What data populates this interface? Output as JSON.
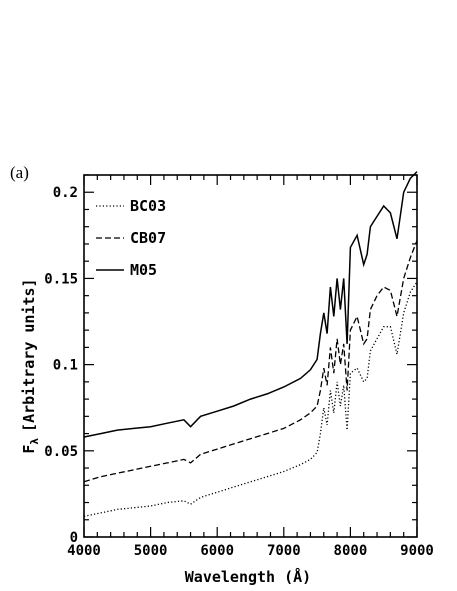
{
  "chart_data": {
    "type": "line",
    "panel_label": "(a)",
    "xlabel": "Wavelength (Å)",
    "ylabel": "F",
    "ylabel_subscript": "λ",
    "ylabel_units": "[Arbitrary units]",
    "xlim": [
      4000,
      9000
    ],
    "ylim": [
      0,
      0.21
    ],
    "x_ticks": [
      4000,
      5000,
      6000,
      7000,
      8000,
      9000
    ],
    "x_tick_labels": [
      "4000",
      "5000",
      "6000",
      "7000",
      "8000",
      "9000"
    ],
    "y_ticks": [
      0,
      0.05,
      0.1,
      0.15,
      0.2
    ],
    "y_tick_labels": [
      "0",
      "0.05",
      "0.1",
      "0.15",
      "0.2"
    ],
    "legend_position": "top-left",
    "grid": false,
    "series": [
      {
        "name": "BC03",
        "style": "dotted",
        "color": "#000000",
        "points": [
          [
            4000,
            0.012
          ],
          [
            4250,
            0.014
          ],
          [
            4500,
            0.016
          ],
          [
            4750,
            0.017
          ],
          [
            5000,
            0.018
          ],
          [
            5250,
            0.02
          ],
          [
            5500,
            0.021
          ],
          [
            5600,
            0.019
          ],
          [
            5750,
            0.023
          ],
          [
            6000,
            0.026
          ],
          [
            6250,
            0.029
          ],
          [
            6500,
            0.032
          ],
          [
            6750,
            0.035
          ],
          [
            7000,
            0.038
          ],
          [
            7250,
            0.042
          ],
          [
            7400,
            0.045
          ],
          [
            7500,
            0.049
          ],
          [
            7550,
            0.06
          ],
          [
            7600,
            0.075
          ],
          [
            7650,
            0.065
          ],
          [
            7700,
            0.085
          ],
          [
            7750,
            0.072
          ],
          [
            7800,
            0.09
          ],
          [
            7850,
            0.076
          ],
          [
            7900,
            0.088
          ],
          [
            7950,
            0.062
          ],
          [
            8000,
            0.095
          ],
          [
            8100,
            0.098
          ],
          [
            8200,
            0.09
          ],
          [
            8250,
            0.092
          ],
          [
            8300,
            0.108
          ],
          [
            8400,
            0.115
          ],
          [
            8500,
            0.122
          ],
          [
            8600,
            0.122
          ],
          [
            8700,
            0.106
          ],
          [
            8800,
            0.13
          ],
          [
            8900,
            0.142
          ],
          [
            9000,
            0.148
          ]
        ]
      },
      {
        "name": "CB07",
        "style": "dashed",
        "color": "#000000",
        "points": [
          [
            4000,
            0.032
          ],
          [
            4250,
            0.035
          ],
          [
            4500,
            0.037
          ],
          [
            4750,
            0.039
          ],
          [
            5000,
            0.041
          ],
          [
            5250,
            0.043
          ],
          [
            5500,
            0.045
          ],
          [
            5600,
            0.043
          ],
          [
            5750,
            0.048
          ],
          [
            6000,
            0.051
          ],
          [
            6250,
            0.054
          ],
          [
            6500,
            0.057
          ],
          [
            6750,
            0.06
          ],
          [
            7000,
            0.063
          ],
          [
            7250,
            0.068
          ],
          [
            7400,
            0.072
          ],
          [
            7500,
            0.076
          ],
          [
            7550,
            0.085
          ],
          [
            7600,
            0.098
          ],
          [
            7650,
            0.088
          ],
          [
            7700,
            0.11
          ],
          [
            7750,
            0.095
          ],
          [
            7800,
            0.115
          ],
          [
            7850,
            0.1
          ],
          [
            7900,
            0.112
          ],
          [
            7950,
            0.085
          ],
          [
            8000,
            0.12
          ],
          [
            8100,
            0.128
          ],
          [
            8200,
            0.112
          ],
          [
            8250,
            0.115
          ],
          [
            8300,
            0.132
          ],
          [
            8400,
            0.14
          ],
          [
            8500,
            0.145
          ],
          [
            8600,
            0.143
          ],
          [
            8700,
            0.128
          ],
          [
            8800,
            0.15
          ],
          [
            8900,
            0.162
          ],
          [
            9000,
            0.172
          ]
        ]
      },
      {
        "name": "M05",
        "style": "solid",
        "color": "#000000",
        "points": [
          [
            4000,
            0.058
          ],
          [
            4250,
            0.06
          ],
          [
            4500,
            0.062
          ],
          [
            4750,
            0.063
          ],
          [
            5000,
            0.064
          ],
          [
            5250,
            0.066
          ],
          [
            5500,
            0.068
          ],
          [
            5600,
            0.064
          ],
          [
            5750,
            0.07
          ],
          [
            6000,
            0.073
          ],
          [
            6250,
            0.076
          ],
          [
            6500,
            0.08
          ],
          [
            6750,
            0.083
          ],
          [
            7000,
            0.087
          ],
          [
            7250,
            0.092
          ],
          [
            7400,
            0.097
          ],
          [
            7500,
            0.103
          ],
          [
            7550,
            0.118
          ],
          [
            7600,
            0.13
          ],
          [
            7650,
            0.118
          ],
          [
            7700,
            0.145
          ],
          [
            7750,
            0.128
          ],
          [
            7800,
            0.15
          ],
          [
            7850,
            0.132
          ],
          [
            7900,
            0.15
          ],
          [
            7950,
            0.112
          ],
          [
            8000,
            0.168
          ],
          [
            8100,
            0.175
          ],
          [
            8200,
            0.158
          ],
          [
            8250,
            0.164
          ],
          [
            8300,
            0.18
          ],
          [
            8400,
            0.186
          ],
          [
            8500,
            0.192
          ],
          [
            8600,
            0.188
          ],
          [
            8700,
            0.173
          ],
          [
            8800,
            0.2
          ],
          [
            8900,
            0.208
          ],
          [
            9000,
            0.212
          ]
        ]
      }
    ]
  }
}
